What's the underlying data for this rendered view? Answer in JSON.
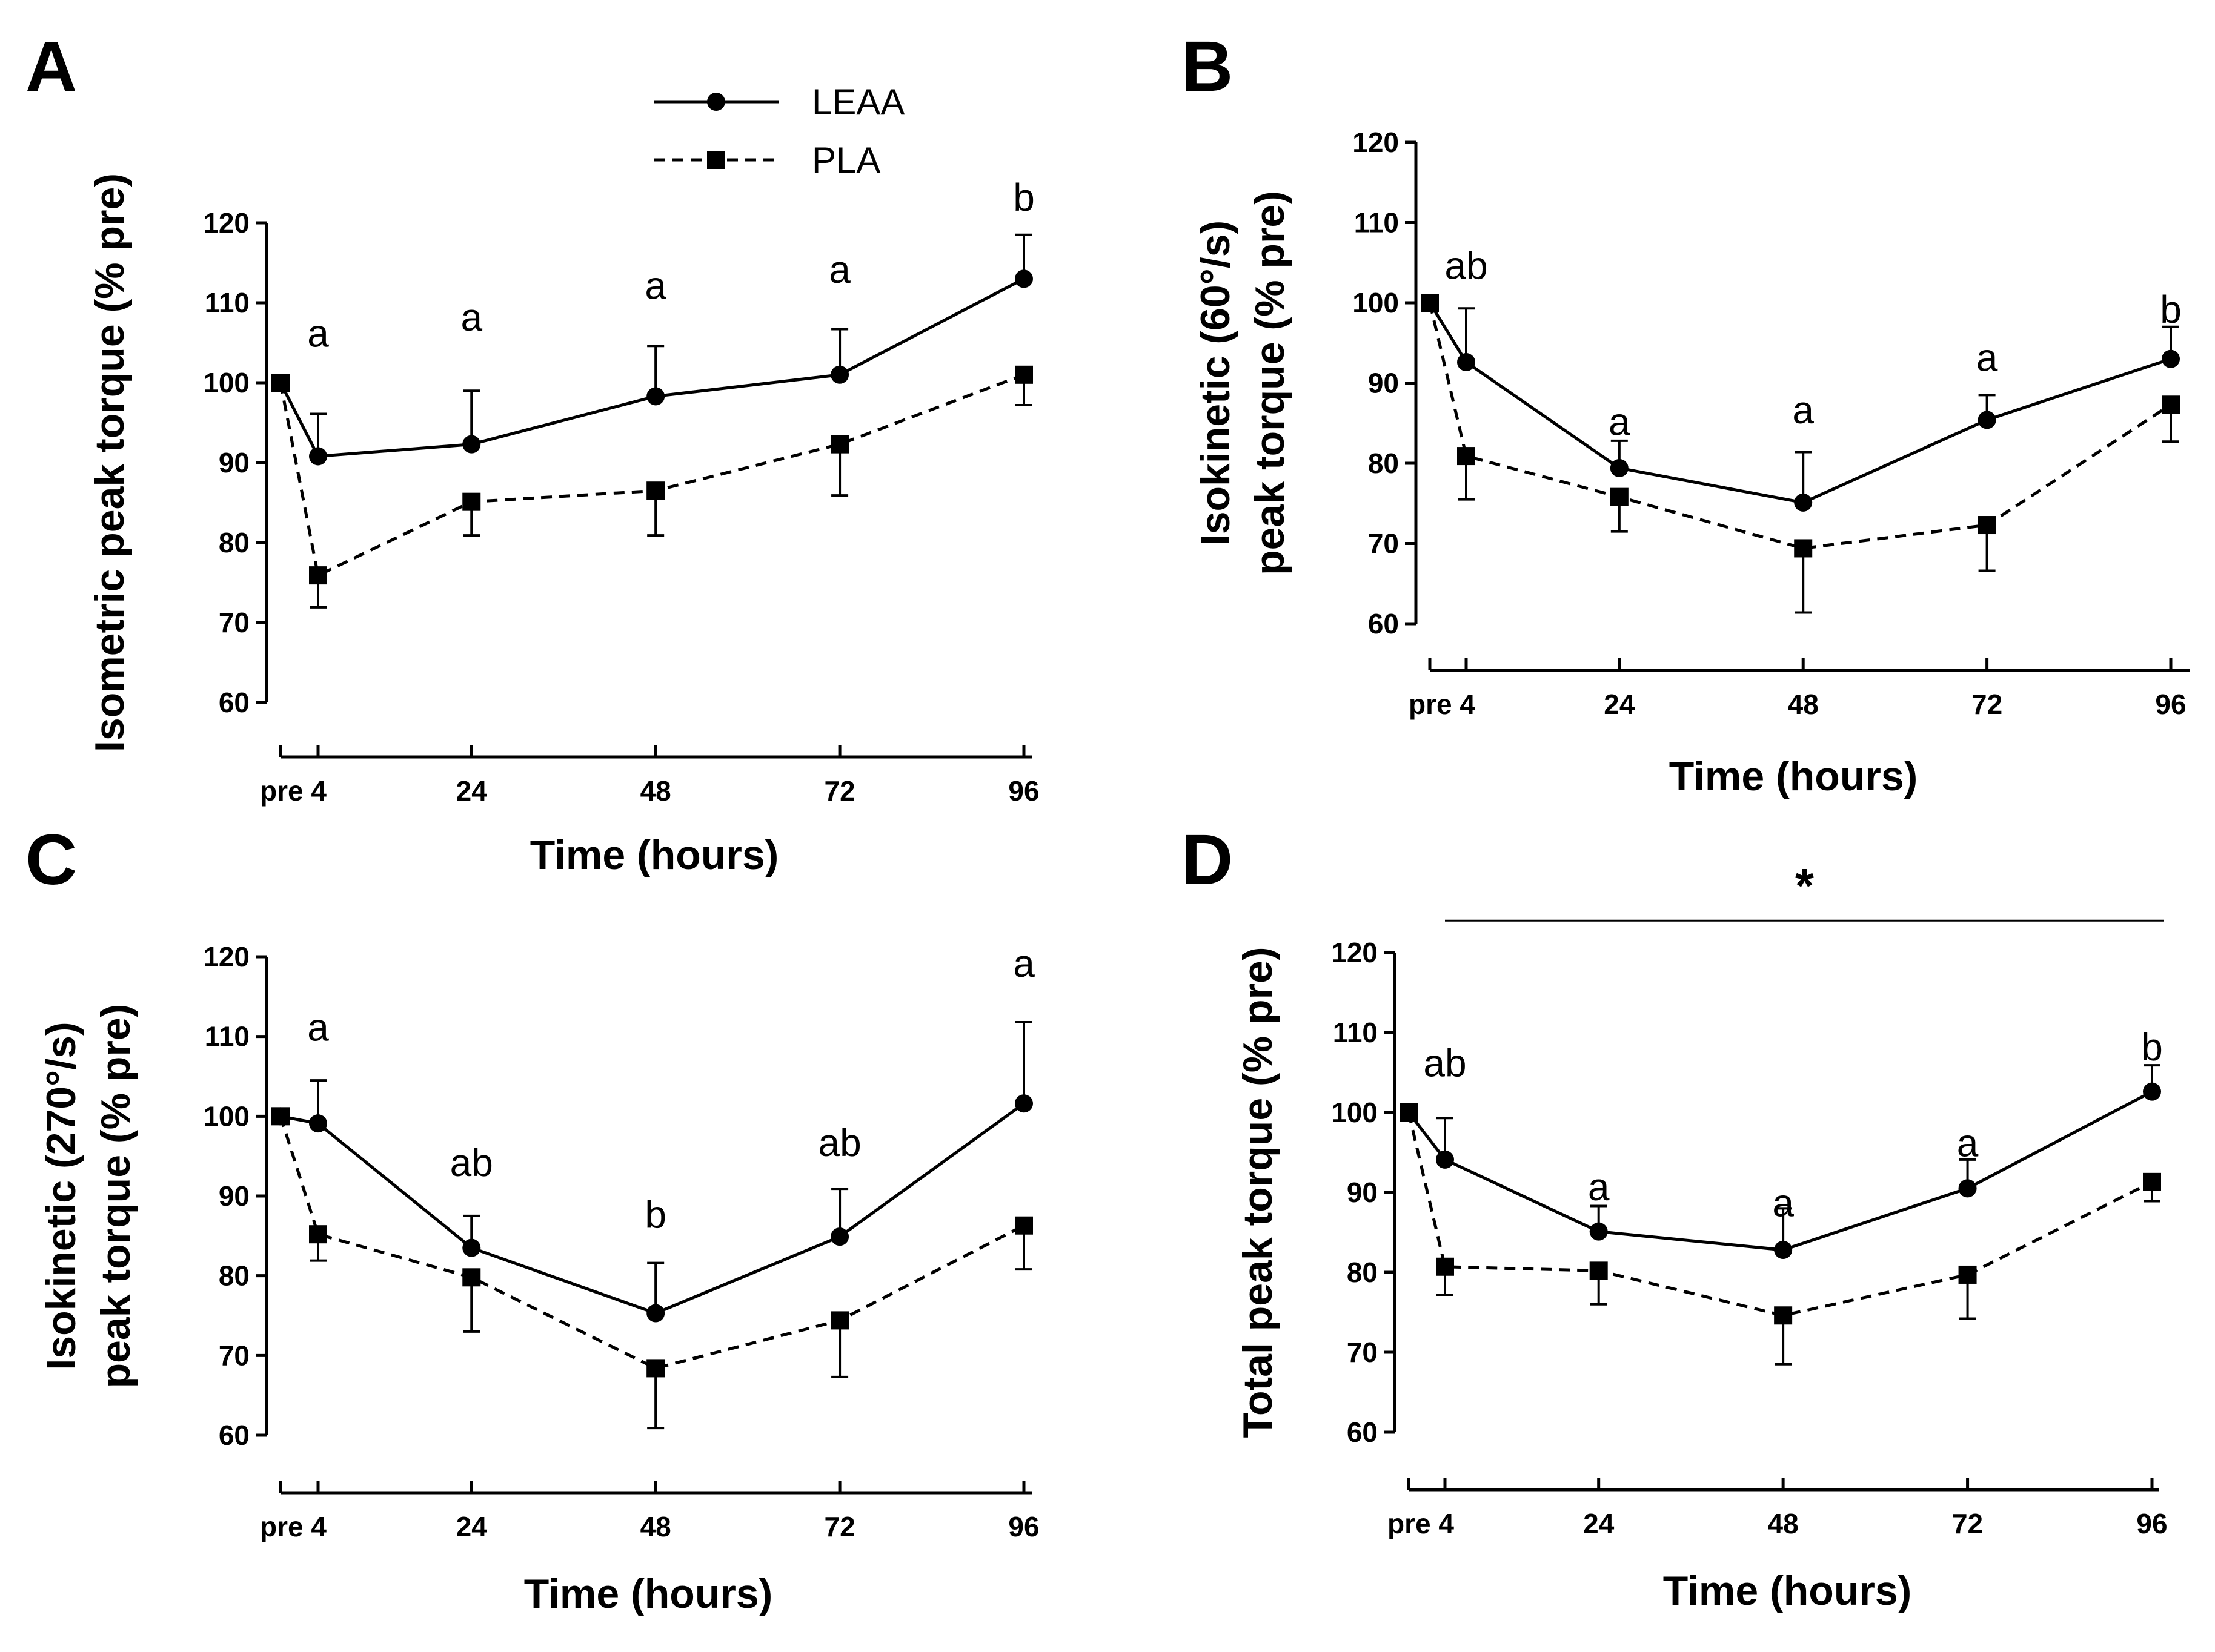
{
  "legend": [
    {
      "label": "LEAA",
      "style": "solid",
      "marker": "circle"
    },
    {
      "label": "PLA",
      "style": "dashed",
      "marker": "square"
    }
  ],
  "chart_data": [
    {
      "panel": "A",
      "type": "line",
      "title": "",
      "xlabel": "Time (hours)",
      "ylabel": [
        "Isometric peak torque (% pre)"
      ],
      "ylim": [
        60,
        120
      ],
      "yticks": [
        60,
        70,
        80,
        90,
        100,
        110,
        120
      ],
      "categories": [
        "pre",
        "4",
        "24",
        "48",
        "72",
        "96"
      ],
      "x": [
        0,
        4,
        24,
        48,
        72,
        96
      ],
      "series": [
        {
          "name": "LEAA",
          "values": [
            100,
            90.8,
            92.3,
            98.3,
            101,
            113
          ],
          "error": [
            0,
            5.3,
            6.7,
            6.3,
            5.7,
            5.5
          ]
        },
        {
          "name": "PLA",
          "values": [
            100,
            75.9,
            85.1,
            86.5,
            92.3,
            101
          ],
          "error": [
            0,
            4,
            4.2,
            5.6,
            6.4,
            3.8
          ]
        }
      ],
      "annotations": [
        {
          "x": 4,
          "y": 104.5,
          "text": "a"
        },
        {
          "x": 24,
          "y": 106.5,
          "text": "a"
        },
        {
          "x": 48,
          "y": 110.5,
          "text": "a"
        },
        {
          "x": 72,
          "y": 112.5,
          "text": "a"
        },
        {
          "x": 96,
          "y": 121.5,
          "text": "b"
        }
      ],
      "bracket": null
    },
    {
      "panel": "B",
      "type": "line",
      "title": "",
      "xlabel": "Time (hours)",
      "ylabel": [
        "Isokinetic (60°/s)",
        "peak torque (% pre)"
      ],
      "ylim": [
        60,
        120
      ],
      "yticks": [
        60,
        70,
        80,
        90,
        100,
        110,
        120
      ],
      "categories": [
        "pre",
        "4",
        "24",
        "48",
        "72",
        "96"
      ],
      "x": [
        0,
        4,
        24,
        48,
        72,
        96
      ],
      "series": [
        {
          "name": "LEAA",
          "values": [
            100,
            92.6,
            79.4,
            75.1,
            85.4,
            93
          ],
          "error": [
            0,
            6.7,
            3.4,
            6.3,
            3.1,
            4
          ]
        },
        {
          "name": "PLA",
          "values": [
            100,
            80.9,
            75.8,
            69.4,
            72.3,
            87.3
          ],
          "error": [
            0,
            5.4,
            4.3,
            8,
            5.7,
            4.6
          ]
        }
      ],
      "annotations": [
        {
          "x": 4,
          "y": 103,
          "text": "ab"
        },
        {
          "x": 24,
          "y": 83.5,
          "text": "a"
        },
        {
          "x": 48,
          "y": 85,
          "text": "a"
        },
        {
          "x": 72,
          "y": 91.5,
          "text": "a"
        },
        {
          "x": 96,
          "y": 97.5,
          "text": "b"
        }
      ],
      "bracket": null
    },
    {
      "panel": "C",
      "type": "line",
      "title": "",
      "xlabel": "Time (hours)",
      "ylabel": [
        "Isokinetic (270°/s)",
        "peak torque (% pre)"
      ],
      "ylim": [
        60,
        120
      ],
      "yticks": [
        60,
        70,
        80,
        90,
        100,
        110,
        120
      ],
      "categories": [
        "pre",
        "4",
        "24",
        "48",
        "72",
        "96"
      ],
      "x": [
        0,
        4,
        24,
        48,
        72,
        96
      ],
      "series": [
        {
          "name": "LEAA",
          "values": [
            100,
            99.1,
            83.5,
            75.3,
            84.9,
            101.6
          ],
          "error": [
            0,
            5.4,
            4,
            6.3,
            6,
            10.2
          ]
        },
        {
          "name": "PLA",
          "values": [
            100,
            85.2,
            79.8,
            68.4,
            74.4,
            86.3
          ],
          "error": [
            0,
            3.3,
            6.8,
            7.5,
            7.1,
            5.5
          ]
        }
      ],
      "annotations": [
        {
          "x": 4,
          "y": 109.5,
          "text": "a"
        },
        {
          "x": 24,
          "y": 92.5,
          "text": "ab"
        },
        {
          "x": 48,
          "y": 86,
          "text": "b"
        },
        {
          "x": 72,
          "y": 95,
          "text": "ab"
        },
        {
          "x": 96,
          "y": 117.5,
          "text": "a"
        }
      ],
      "bracket": null
    },
    {
      "panel": "D",
      "type": "line",
      "title": "",
      "xlabel": "Time (hours)",
      "ylabel": [
        "Total peak torque (% pre)"
      ],
      "ylim": [
        60,
        120
      ],
      "yticks": [
        60,
        70,
        80,
        90,
        100,
        110,
        120
      ],
      "categories": [
        "pre",
        "4",
        "24",
        "48",
        "72",
        "96"
      ],
      "x": [
        0,
        4,
        24,
        48,
        72,
        96
      ],
      "series": [
        {
          "name": "LEAA",
          "values": [
            100,
            94.1,
            85.1,
            82.8,
            90.5,
            102.6
          ],
          "error": [
            0,
            5.2,
            3.2,
            5.2,
            3.6,
            3.3
          ]
        },
        {
          "name": "PLA",
          "values": [
            100,
            80.7,
            80.2,
            74.6,
            79.7,
            91.3
          ],
          "error": [
            0,
            3.5,
            4.2,
            6.1,
            5.5,
            2.4
          ]
        }
      ],
      "annotations": [
        {
          "x": 4,
          "y": 104.5,
          "text": "ab"
        },
        {
          "x": 24,
          "y": 89,
          "text": "a"
        },
        {
          "x": 48,
          "y": 87,
          "text": "a"
        },
        {
          "x": 72,
          "y": 94.5,
          "text": "a"
        },
        {
          "x": 96,
          "y": 106.5,
          "text": "b"
        }
      ],
      "bracket": {
        "from": 4,
        "to": 96,
        "y": 124,
        "text": "*"
      }
    }
  ]
}
